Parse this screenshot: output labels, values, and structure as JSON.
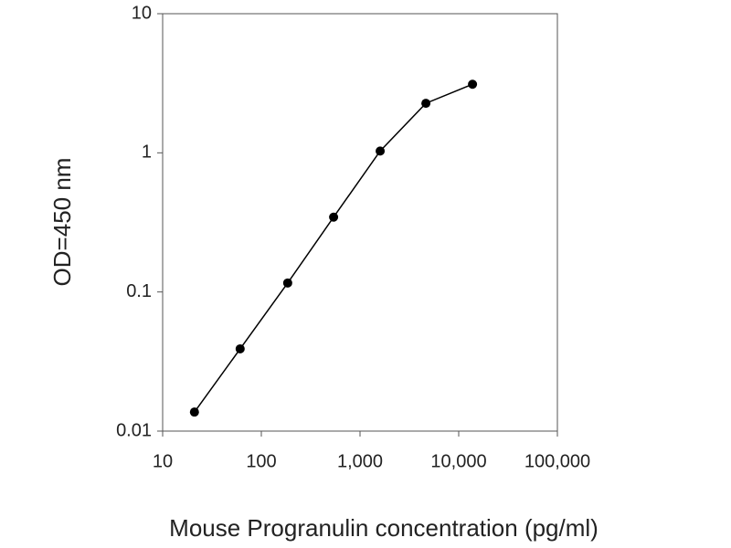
{
  "chart_data": {
    "type": "line",
    "x_label": "Mouse Progranulin concentration (pg/ml)",
    "y_label": "OD=450 nm",
    "x": [
      21,
      61,
      185,
      540,
      1600,
      4650,
      13800
    ],
    "series": [
      {
        "color": "#000000",
        "values": [
          0.0137,
          0.039,
          0.116,
          0.345,
          1.03,
          2.27,
          3.11
        ]
      }
    ],
    "xscale": "log",
    "yscale": "log",
    "xlim": [
      10,
      100000
    ],
    "ylim": [
      0.01,
      10
    ],
    "xticks": [
      10,
      100,
      {
        "value": 1000,
        "label": "1,000"
      },
      {
        "value": 10000,
        "label": "10,000"
      },
      {
        "value": 100000,
        "label": "100,000"
      }
    ],
    "yticks": [
      0.01,
      0.1,
      1,
      10
    ]
  }
}
